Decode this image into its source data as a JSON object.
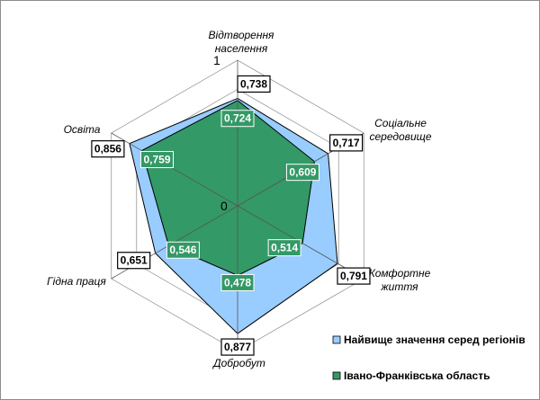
{
  "chart_data": {
    "type": "radar",
    "categories": [
      [
        "Відтворення",
        "населення"
      ],
      [
        "Соціальне",
        "середовище"
      ],
      [
        "Комфортне",
        "життя"
      ],
      [
        "Добробут"
      ],
      [
        "Гідна праця"
      ],
      [
        "Освіта"
      ]
    ],
    "series": [
      {
        "name": "Найвище значення серед регіонів",
        "values": [
          0.738,
          0.717,
          0.791,
          0.877,
          0.651,
          0.856
        ],
        "labels": [
          "0,738",
          "0,717",
          "0,791",
          "0,877",
          "0,651",
          "0,856"
        ],
        "color": "#99ccff"
      },
      {
        "name": "Івано-Франківська область",
        "values": [
          0.724,
          0.609,
          0.514,
          0.478,
          0.546,
          0.759
        ],
        "labels": [
          "0,724",
          "0,609",
          "0,514",
          "0,478",
          "0,546",
          "0,759"
        ],
        "color": "#339966"
      }
    ],
    "range": [
      0,
      1
    ],
    "tick_labels": [
      "0",
      "1"
    ],
    "gridlines": 5,
    "legend_position": "bottom-right"
  }
}
